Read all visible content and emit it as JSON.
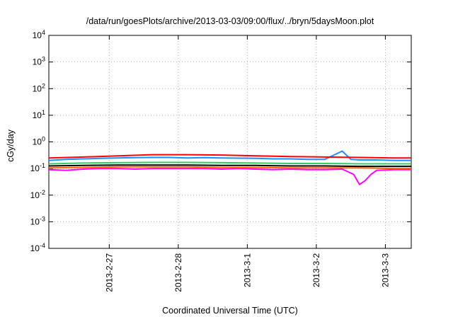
{
  "chart_data": {
    "type": "line",
    "title": "/data/run/goesPlots/archive/2013-03-03/09:00/flux/../bryn/5daysMoon.plot",
    "xlabel": "Coordinated Universal Time (UTC)",
    "ylabel": "cGy/day",
    "y_scale": "log",
    "ylim": [
      0.0001,
      10000
    ],
    "y_ticks": [
      {
        "value": 0.0001,
        "base": "10",
        "exp": "-4"
      },
      {
        "value": 0.001,
        "base": "10",
        "exp": "-3"
      },
      {
        "value": 0.01,
        "base": "10",
        "exp": "-2"
      },
      {
        "value": 0.1,
        "base": "10",
        "exp": "-1"
      },
      {
        "value": 1,
        "base": "10",
        "exp": "0"
      },
      {
        "value": 10,
        "base": "10",
        "exp": "1"
      },
      {
        "value": 100,
        "base": "10",
        "exp": "2"
      },
      {
        "value": 1000,
        "base": "10",
        "exp": "3"
      },
      {
        "value": 10000,
        "base": "10",
        "exp": "4"
      }
    ],
    "x_range": [
      "2013-02-26T03:00",
      "2013-03-03T09:00"
    ],
    "x_ticks": [
      {
        "date": "2013-02-27T00:00",
        "label": "2013-2-27"
      },
      {
        "date": "2013-02-28T00:00",
        "label": "2013-2-28"
      },
      {
        "date": "2013-03-01T00:00",
        "label": "2013-3-1"
      },
      {
        "date": "2013-03-02T00:00",
        "label": "2013-3-2"
      },
      {
        "date": "2013-03-03T00:00",
        "label": "2013-3-3"
      }
    ],
    "grid": true,
    "series": [
      {
        "color": "#ff00ff",
        "points": [
          [
            "2013-02-26T03:00",
            0.09
          ],
          [
            "2013-02-26T09:00",
            0.085
          ],
          [
            "2013-02-26T15:00",
            0.095
          ],
          [
            "2013-02-26T21:00",
            0.1
          ],
          [
            "2013-02-27T03:00",
            0.1
          ],
          [
            "2013-02-27T09:00",
            0.095
          ],
          [
            "2013-02-27T15:00",
            0.1
          ],
          [
            "2013-02-27T21:00",
            0.1
          ],
          [
            "2013-02-28T03:00",
            0.1
          ],
          [
            "2013-02-28T09:00",
            0.1
          ],
          [
            "2013-02-28T15:00",
            0.095
          ],
          [
            "2013-02-28T21:00",
            0.1
          ],
          [
            "2013-03-01T03:00",
            0.095
          ],
          [
            "2013-03-01T09:00",
            0.09
          ],
          [
            "2013-03-01T15:00",
            0.095
          ],
          [
            "2013-03-01T21:00",
            0.09
          ],
          [
            "2013-03-02T03:00",
            0.09
          ],
          [
            "2013-03-02T09:00",
            0.095
          ],
          [
            "2013-03-02T13:00",
            0.06
          ],
          [
            "2013-03-02T15:00",
            0.025
          ],
          [
            "2013-03-02T17:00",
            0.035
          ],
          [
            "2013-03-02T19:00",
            0.06
          ],
          [
            "2013-03-02T21:00",
            0.085
          ],
          [
            "2013-03-03T03:00",
            0.09
          ],
          [
            "2013-03-03T09:00",
            0.09
          ]
        ]
      },
      {
        "color": "#ff6600",
        "points": [
          [
            "2013-02-26T03:00",
            0.105
          ],
          [
            "2013-02-26T15:00",
            0.11
          ],
          [
            "2013-02-27T03:00",
            0.115
          ],
          [
            "2013-02-27T15:00",
            0.115
          ],
          [
            "2013-02-28T03:00",
            0.115
          ],
          [
            "2013-02-28T15:00",
            0.11
          ],
          [
            "2013-03-01T03:00",
            0.11
          ],
          [
            "2013-03-01T15:00",
            0.105
          ],
          [
            "2013-03-02T03:00",
            0.105
          ],
          [
            "2013-03-02T15:00",
            0.105
          ],
          [
            "2013-03-03T03:00",
            0.1
          ],
          [
            "2013-03-03T09:00",
            0.1
          ]
        ]
      },
      {
        "color": "#000000",
        "points": [
          [
            "2013-02-26T03:00",
            0.125
          ],
          [
            "2013-02-26T15:00",
            0.13
          ],
          [
            "2013-02-27T03:00",
            0.135
          ],
          [
            "2013-02-27T15:00",
            0.135
          ],
          [
            "2013-02-28T03:00",
            0.135
          ],
          [
            "2013-02-28T15:00",
            0.13
          ],
          [
            "2013-03-01T03:00",
            0.13
          ],
          [
            "2013-03-01T15:00",
            0.125
          ],
          [
            "2013-03-02T03:00",
            0.125
          ],
          [
            "2013-03-02T15:00",
            0.12
          ],
          [
            "2013-03-03T03:00",
            0.12
          ],
          [
            "2013-03-03T09:00",
            0.12
          ]
        ]
      },
      {
        "color": "#33cc66",
        "points": [
          [
            "2013-02-26T03:00",
            0.15
          ],
          [
            "2013-02-26T15:00",
            0.16
          ],
          [
            "2013-02-27T03:00",
            0.165
          ],
          [
            "2013-02-27T15:00",
            0.17
          ],
          [
            "2013-02-28T03:00",
            0.17
          ],
          [
            "2013-02-28T15:00",
            0.165
          ],
          [
            "2013-03-01T03:00",
            0.16
          ],
          [
            "2013-03-01T15:00",
            0.155
          ],
          [
            "2013-03-02T03:00",
            0.155
          ],
          [
            "2013-03-02T15:00",
            0.15
          ],
          [
            "2013-03-03T03:00",
            0.15
          ],
          [
            "2013-03-03T09:00",
            0.15
          ]
        ]
      },
      {
        "color": "#1e90ff",
        "points": [
          [
            "2013-02-26T03:00",
            0.2
          ],
          [
            "2013-02-26T09:00",
            0.22
          ],
          [
            "2013-02-26T15:00",
            0.23
          ],
          [
            "2013-02-26T21:00",
            0.24
          ],
          [
            "2013-02-27T03:00",
            0.25
          ],
          [
            "2013-02-27T09:00",
            0.255
          ],
          [
            "2013-02-27T15:00",
            0.26
          ],
          [
            "2013-02-27T21:00",
            0.26
          ],
          [
            "2013-02-28T03:00",
            0.25
          ],
          [
            "2013-02-28T09:00",
            0.255
          ],
          [
            "2013-02-28T15:00",
            0.25
          ],
          [
            "2013-02-28T21:00",
            0.245
          ],
          [
            "2013-03-01T03:00",
            0.24
          ],
          [
            "2013-03-01T09:00",
            0.23
          ],
          [
            "2013-03-01T15:00",
            0.23
          ],
          [
            "2013-03-01T21:00",
            0.22
          ],
          [
            "2013-03-02T03:00",
            0.22
          ],
          [
            "2013-03-02T09:00",
            0.45
          ],
          [
            "2013-03-02T12:00",
            0.22
          ],
          [
            "2013-03-02T15:00",
            0.21
          ],
          [
            "2013-03-02T21:00",
            0.21
          ],
          [
            "2013-03-03T03:00",
            0.2
          ],
          [
            "2013-03-03T09:00",
            0.2
          ]
        ]
      },
      {
        "color": "#ff0000",
        "points": [
          [
            "2013-02-26T03:00",
            0.25
          ],
          [
            "2013-02-26T15:00",
            0.27
          ],
          [
            "2013-02-27T03:00",
            0.3
          ],
          [
            "2013-02-27T15:00",
            0.33
          ],
          [
            "2013-02-28T03:00",
            0.33
          ],
          [
            "2013-02-28T15:00",
            0.32
          ],
          [
            "2013-03-01T03:00",
            0.3
          ],
          [
            "2013-03-01T15:00",
            0.28
          ],
          [
            "2013-03-02T03:00",
            0.27
          ],
          [
            "2013-03-02T15:00",
            0.26
          ],
          [
            "2013-03-03T03:00",
            0.25
          ],
          [
            "2013-03-03T09:00",
            0.25
          ]
        ]
      }
    ]
  }
}
